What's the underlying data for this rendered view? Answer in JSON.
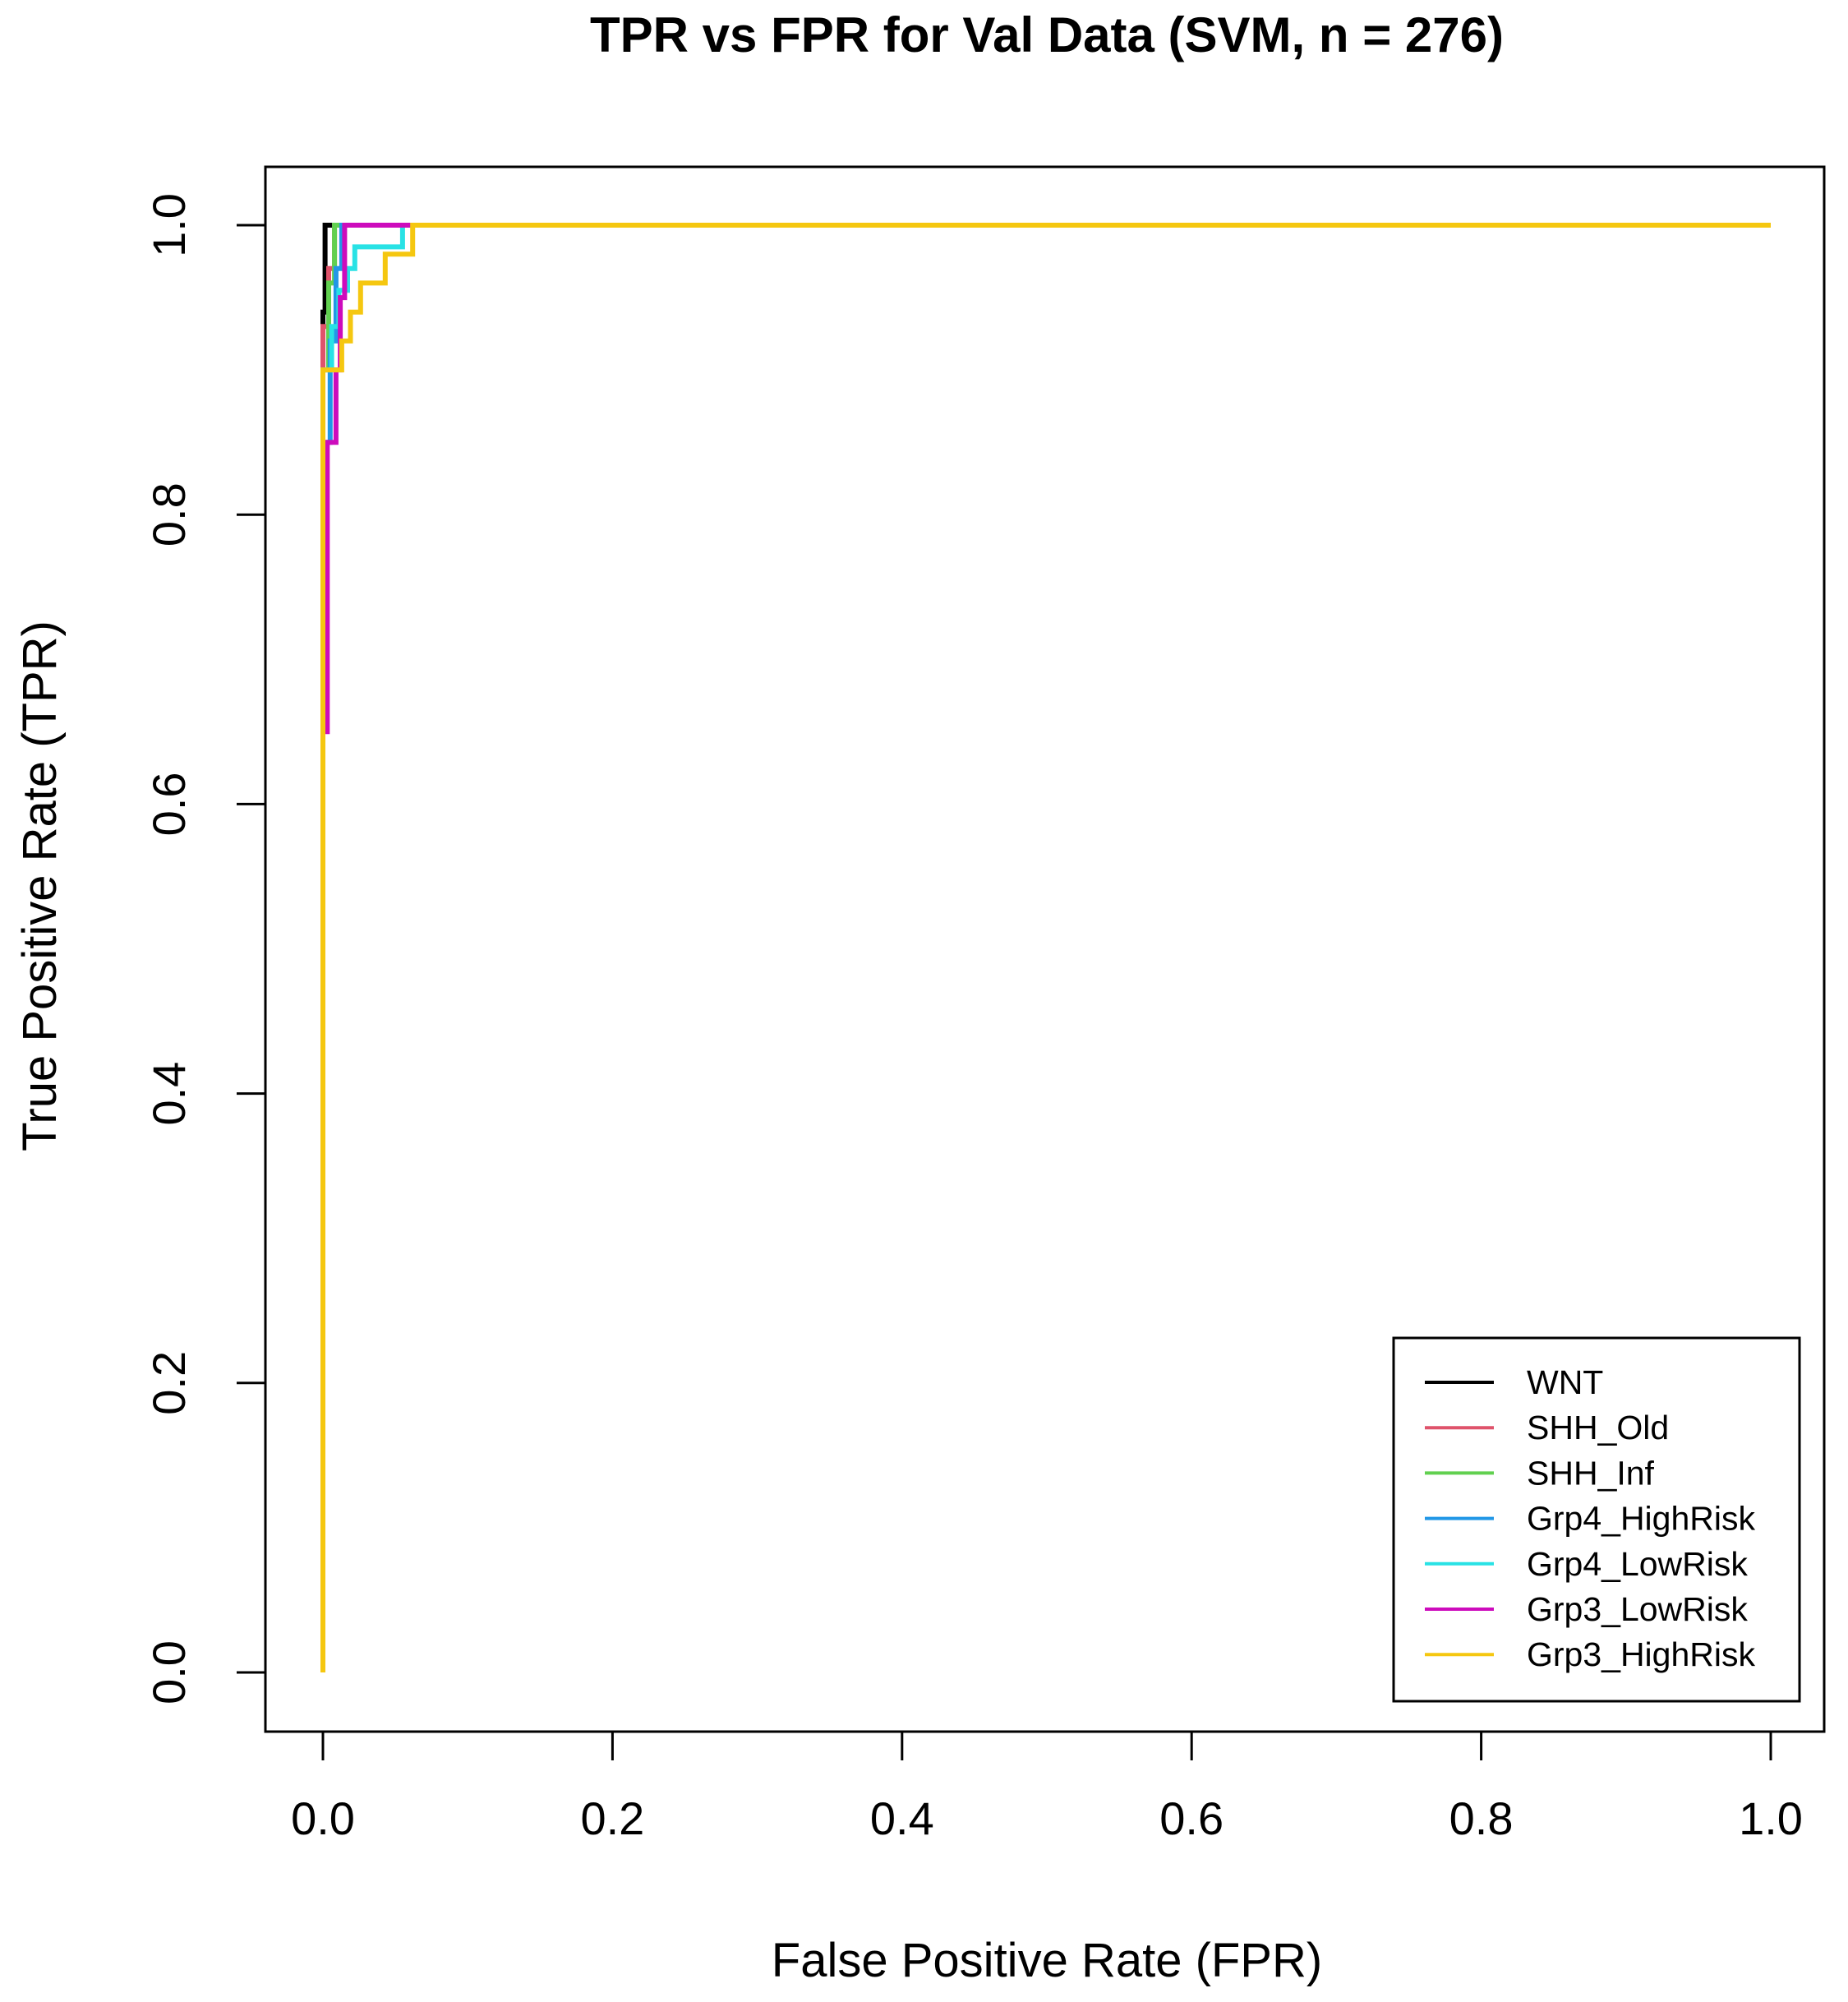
{
  "chart_data": {
    "type": "line",
    "title": "TPR vs FPR for Val Data (SVM, n = 276)",
    "xlabel": "False Positive Rate (FPR)",
    "ylabel": "True Positive Rate (TPR)",
    "xlim": [
      0,
      1
    ],
    "ylim": [
      0,
      1
    ],
    "xticks": [
      0.0,
      0.2,
      0.4,
      0.6,
      0.8,
      1.0
    ],
    "xtick_labels": [
      "0.0",
      "0.2",
      "0.4",
      "0.6",
      "0.8",
      "1.0"
    ],
    "yticks": [
      0.0,
      0.2,
      0.4,
      0.6,
      0.8,
      1.0
    ],
    "ytick_labels": [
      "0.0",
      "0.2",
      "0.4",
      "0.6",
      "0.8",
      "1.0"
    ],
    "grid": false,
    "legend_position": "bottom-right",
    "series": [
      {
        "name": "WNT",
        "color": "#000000",
        "x": [
          0,
          0,
          0.0015,
          0.0015,
          1
        ],
        "y": [
          0,
          0.94,
          0.94,
          1.0,
          1.0
        ]
      },
      {
        "name": "SHH_Old",
        "color": "#DF536B",
        "x": [
          0,
          0,
          0.004,
          0.004,
          0.008,
          0.008,
          1
        ],
        "y": [
          0,
          0.93,
          0.93,
          0.97,
          0.97,
          1.0,
          1.0
        ]
      },
      {
        "name": "SHH_Inf",
        "color": "#61D04F",
        "x": [
          0,
          0,
          0.004,
          0.004,
          0.008,
          0.008,
          1
        ],
        "y": [
          0,
          0.9,
          0.9,
          0.96,
          0.96,
          1.0,
          1.0
        ]
      },
      {
        "name": "Grp4_HighRisk",
        "color": "#2297E6",
        "x": [
          0,
          0,
          0.005,
          0.005,
          0.009,
          0.009,
          0.013,
          0.013,
          1
        ],
        "y": [
          0,
          0.85,
          0.85,
          0.92,
          0.92,
          0.97,
          0.97,
          1.0,
          1.0
        ]
      },
      {
        "name": "Grp4_LowRisk",
        "color": "#28E2E5",
        "x": [
          0,
          0,
          0.006,
          0.006,
          0.011,
          0.011,
          0.017,
          0.017,
          0.022,
          0.022,
          0.055,
          0.055,
          1
        ],
        "y": [
          0,
          0.9,
          0.9,
          0.93,
          0.93,
          0.955,
          0.955,
          0.97,
          0.97,
          0.985,
          0.985,
          1.0,
          1.0
        ]
      },
      {
        "name": "Grp3_LowRisk",
        "color": "#CD0BBC",
        "x": [
          0,
          0,
          0.003,
          0.003,
          0.009,
          0.009,
          0.012,
          0.012,
          0.015,
          0.015,
          0.018,
          0.018,
          1
        ],
        "y": [
          0,
          0.65,
          0.65,
          0.85,
          0.85,
          0.9,
          0.9,
          0.95,
          0.95,
          1.0,
          1.0,
          1.0,
          1.0
        ]
      },
      {
        "name": "Grp3_HighRisk",
        "color": "#F5C710",
        "x": [
          0,
          0,
          0.013,
          0.013,
          0.019,
          0.019,
          0.026,
          0.026,
          0.032,
          0.032,
          0.043,
          0.043,
          0.055,
          0.055,
          0.062,
          0.062,
          1
        ],
        "y": [
          0,
          0.9,
          0.9,
          0.92,
          0.92,
          0.94,
          0.94,
          0.96,
          0.96,
          0.96,
          0.96,
          0.98,
          0.98,
          0.98,
          0.98,
          1.0,
          1.0
        ]
      }
    ]
  }
}
